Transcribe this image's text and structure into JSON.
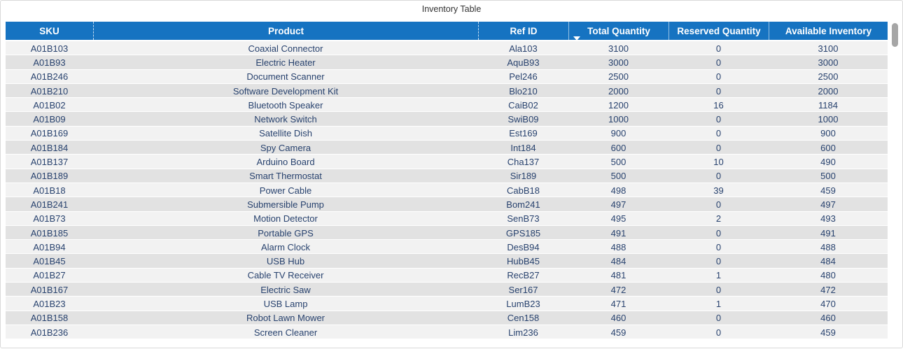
{
  "title": "Inventory Table",
  "colors": {
    "header_bg": "#1673C1",
    "header_text": "#FFFFFF",
    "row_text": "#28426E",
    "row_odd_bg": "#F2F2F2",
    "row_even_bg": "#E2E2E2",
    "card_border": "#D9D9D9",
    "title_text": "#333333",
    "scrollbar_thumb": "#A6A6A6"
  },
  "icons": {
    "sort_descending": "down-triangle"
  },
  "table": {
    "columns": [
      "SKU",
      "Product",
      "Ref ID",
      "Total Quantity",
      "Reserved Quantity",
      "Available Inventory"
    ],
    "sort": {
      "column": "Total Quantity",
      "direction": "descending"
    },
    "rows": [
      [
        "A01B103",
        "Coaxial Connector",
        "Ala103",
        3100,
        0,
        3100
      ],
      [
        "A01B93",
        "Electric Heater",
        "AquB93",
        3000,
        0,
        3000
      ],
      [
        "A01B246",
        "Document Scanner",
        "Pel246",
        2500,
        0,
        2500
      ],
      [
        "A01B210",
        "Software Development Kit",
        "Blo210",
        2000,
        0,
        2000
      ],
      [
        "A01B02",
        "Bluetooth Speaker",
        "CaiB02",
        1200,
        16,
        1184
      ],
      [
        "A01B09",
        "Network Switch",
        "SwiB09",
        1000,
        0,
        1000
      ],
      [
        "A01B169",
        "Satellite Dish",
        "Est169",
        900,
        0,
        900
      ],
      [
        "A01B184",
        "Spy Camera",
        "Int184",
        600,
        0,
        600
      ],
      [
        "A01B137",
        "Arduino Board",
        "Cha137",
        500,
        10,
        490
      ],
      [
        "A01B189",
        "Smart Thermostat",
        "Sir189",
        500,
        0,
        500
      ],
      [
        "A01B18",
        "Power Cable",
        "CabB18",
        498,
        39,
        459
      ],
      [
        "A01B241",
        "Submersible Pump",
        "Bom241",
        497,
        0,
        497
      ],
      [
        "A01B73",
        "Motion Detector",
        "SenB73",
        495,
        2,
        493
      ],
      [
        "A01B185",
        "Portable GPS",
        "GPS185",
        491,
        0,
        491
      ],
      [
        "A01B94",
        "Alarm Clock",
        "DesB94",
        488,
        0,
        488
      ],
      [
        "A01B45",
        "USB Hub",
        "HubB45",
        484,
        0,
        484
      ],
      [
        "A01B27",
        "Cable TV Receiver",
        "RecB27",
        481,
        1,
        480
      ],
      [
        "A01B167",
        "Electric Saw",
        "Ser167",
        472,
        0,
        472
      ],
      [
        "A01B23",
        "USB Lamp",
        "LumB23",
        471,
        1,
        470
      ],
      [
        "A01B158",
        "Robot Lawn Mower",
        "Cen158",
        460,
        0,
        460
      ],
      [
        "A01B236",
        "Screen Cleaner",
        "Lim236",
        459,
        0,
        459
      ]
    ]
  }
}
